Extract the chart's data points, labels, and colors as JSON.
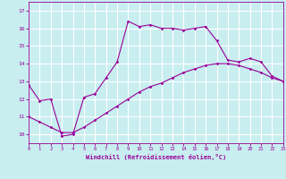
{
  "xlabel": "Windchill (Refroidissement éolien,°C)",
  "bg_color": "#c8eef0",
  "grid_color": "#ffffff",
  "line_color": "#990099",
  "x_min": 0,
  "x_max": 23,
  "y_min": 9.5,
  "y_max": 17.5,
  "y_ticks": [
    10,
    11,
    12,
    13,
    14,
    15,
    16,
    17
  ],
  "x_ticks": [
    0,
    1,
    2,
    3,
    4,
    5,
    6,
    7,
    8,
    9,
    10,
    11,
    12,
    13,
    14,
    15,
    16,
    17,
    18,
    19,
    20,
    21,
    22,
    23
  ],
  "line1_x": [
    0,
    1,
    2,
    3,
    4,
    5,
    6,
    7,
    8,
    9,
    10,
    11,
    12,
    13,
    14,
    15,
    16,
    17,
    18,
    19,
    20,
    21,
    22,
    23
  ],
  "line1_y": [
    12.8,
    11.9,
    12.0,
    9.9,
    10.0,
    12.1,
    12.3,
    13.2,
    14.1,
    16.4,
    16.1,
    16.2,
    16.0,
    16.0,
    15.9,
    16.0,
    16.1,
    15.3,
    14.2,
    14.1,
    14.3,
    14.1,
    13.3,
    13.0
  ],
  "line2_x": [
    0,
    1,
    2,
    3,
    4,
    5,
    6,
    7,
    8,
    9,
    10,
    11,
    12,
    13,
    14,
    15,
    16,
    17,
    18,
    19,
    20,
    21,
    22,
    23
  ],
  "line2_y": [
    11.0,
    10.7,
    10.4,
    10.1,
    10.1,
    10.4,
    10.8,
    11.2,
    11.6,
    12.0,
    12.4,
    12.7,
    12.9,
    13.2,
    13.5,
    13.7,
    13.9,
    14.0,
    14.0,
    13.9,
    13.7,
    13.5,
    13.2,
    13.0
  ]
}
